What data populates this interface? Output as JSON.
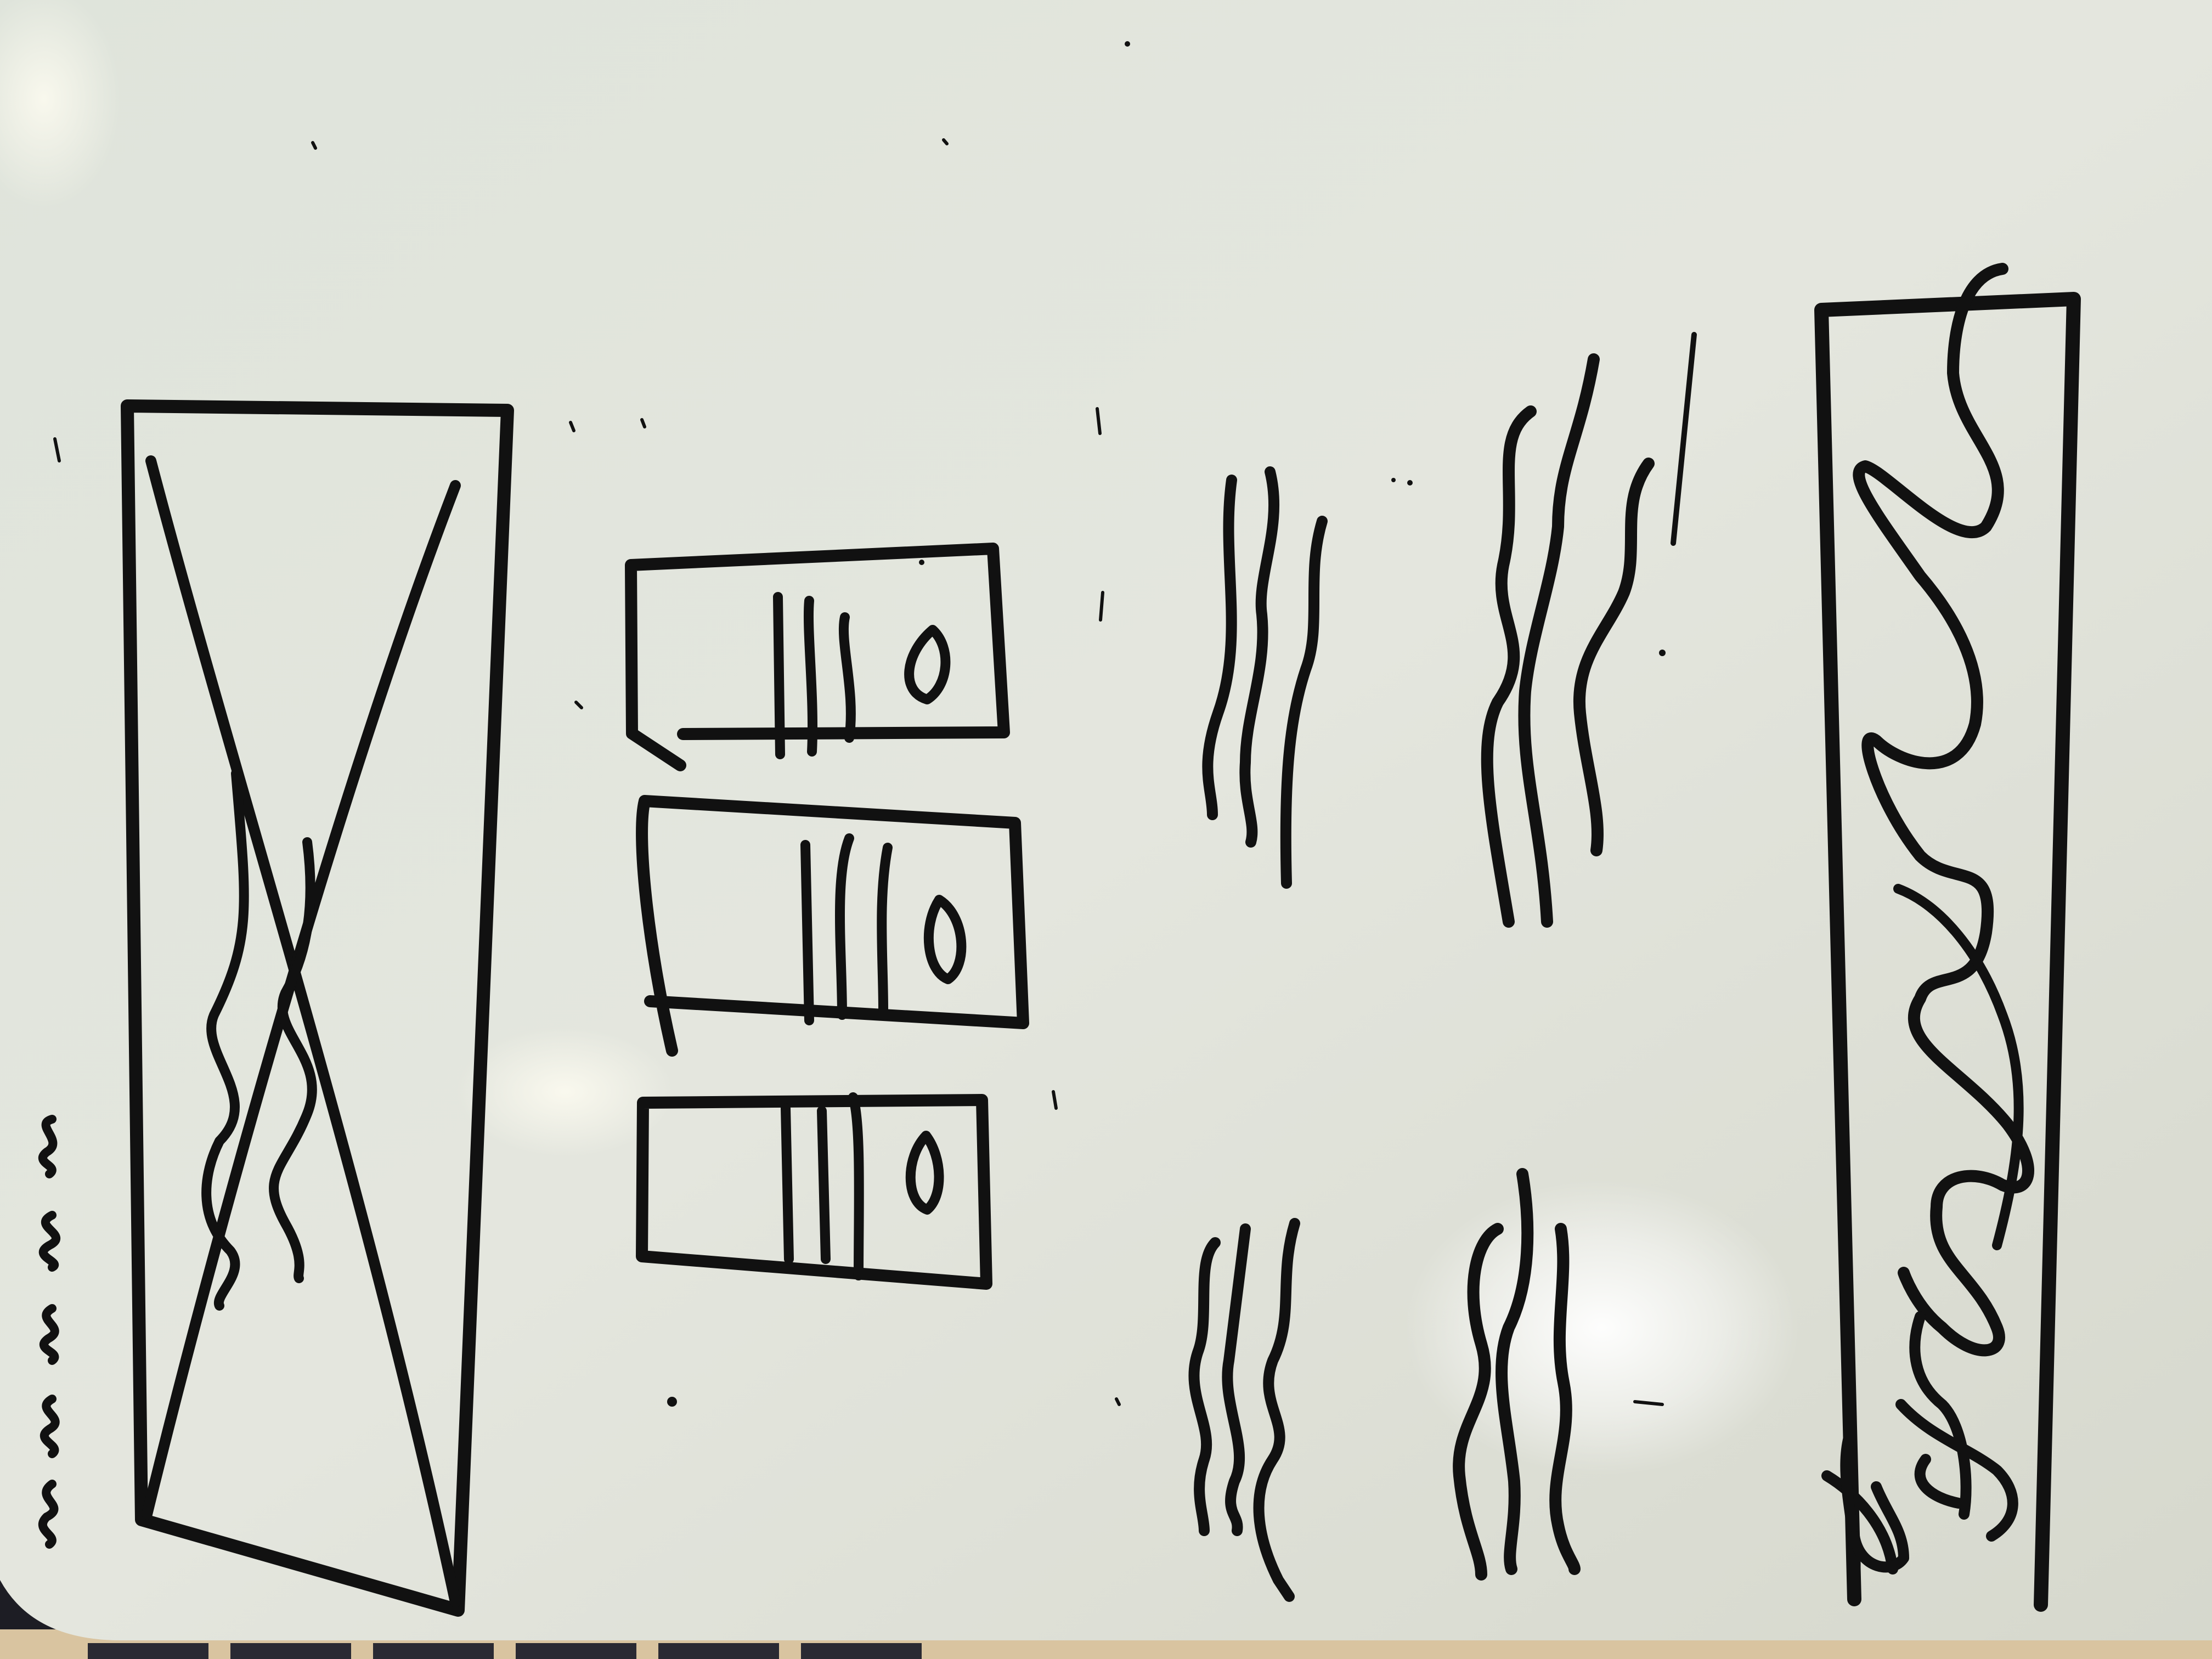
{
  "photo": {
    "subject": "whiteboard-wireframe-sketch",
    "board_color": "#e1e4da",
    "marker_color": "#111111",
    "desk_color": "#1d1d24"
  },
  "sketch": {
    "left_panel": {
      "element": "image-placeholder",
      "icon": "crossed-box"
    },
    "cards": [
      {
        "element": "card",
        "icon": "eye-shape"
      },
      {
        "element": "card",
        "icon": "eye-shape"
      },
      {
        "element": "card",
        "icon": "eye-shape"
      }
    ],
    "text_blocks": [
      {
        "element": "squiggle-text"
      },
      {
        "element": "squiggle-text"
      },
      {
        "element": "squiggle-text"
      },
      {
        "element": "squiggle-text"
      }
    ],
    "footer_bar": {
      "element": "scribble-bar"
    },
    "signature": {
      "element": "signature"
    }
  }
}
